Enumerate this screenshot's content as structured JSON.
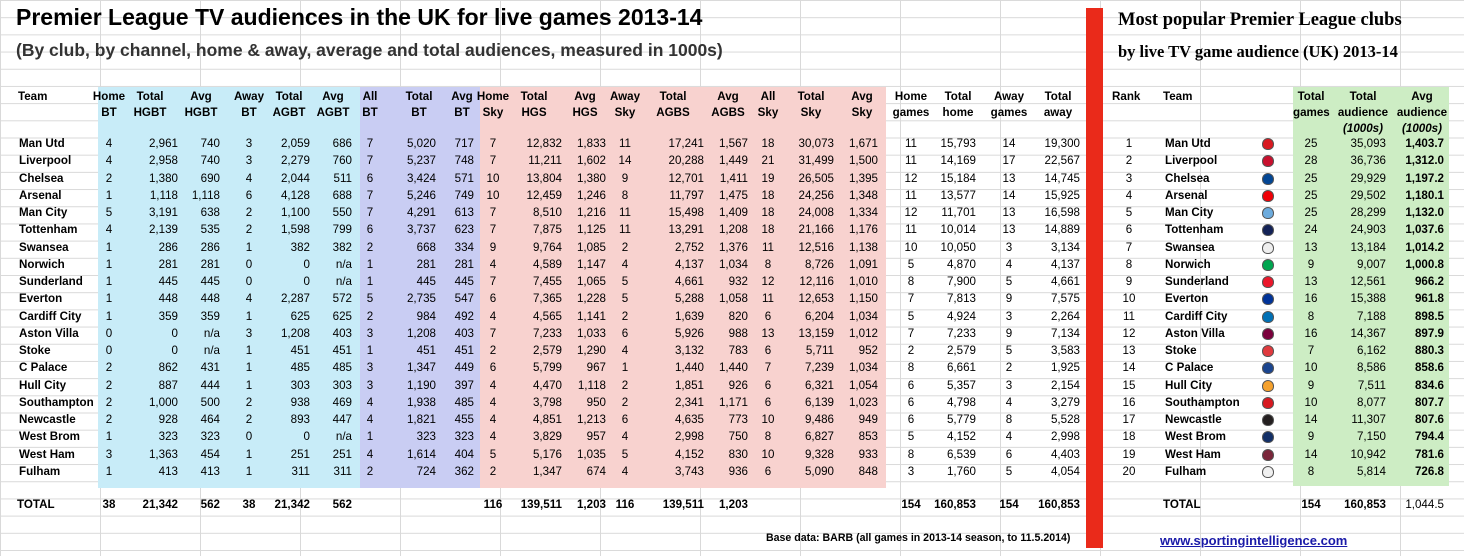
{
  "header": {
    "title": "Premier League TV audiences in the UK for live games 2013-14",
    "subtitle": "(By club, by channel, home & away, average and total audiences, measured in 1000s)"
  },
  "right_panel": {
    "title": "Most popular Premier League clubs",
    "subtitle": "by live TV game audience (UK) 2013-14"
  },
  "footer": {
    "base_data": "Base data: BARB (all games in 2013-14 season, to 11.5.2014)",
    "website": "www.sportingintelligence.com"
  },
  "chart_data": [
    {
      "type": "table",
      "columns": [
        {
          "key": "team",
          "header": [
            "Team"
          ]
        },
        {
          "key": "home_bt",
          "header": [
            "Home",
            "BT"
          ]
        },
        {
          "key": "total_hgbt",
          "header": [
            "Total",
            "HGBT"
          ]
        },
        {
          "key": "avg_hgbt",
          "header": [
            "Avg",
            "HGBT"
          ]
        },
        {
          "key": "away_bt",
          "header": [
            "Away",
            "BT"
          ]
        },
        {
          "key": "total_agbt",
          "header": [
            "Total",
            "AGBT"
          ]
        },
        {
          "key": "avg_agbt",
          "header": [
            "Avg",
            "AGBT"
          ]
        },
        {
          "key": "all_bt",
          "header": [
            "All",
            "BT"
          ]
        },
        {
          "key": "total_bt",
          "header": [
            "Total",
            "BT"
          ]
        },
        {
          "key": "avg_bt",
          "header": [
            "Avg",
            "BT"
          ]
        },
        {
          "key": "home_sky",
          "header": [
            "Home",
            "Sky"
          ]
        },
        {
          "key": "total_hgs",
          "header": [
            "Total",
            "HGS"
          ]
        },
        {
          "key": "avg_hgs",
          "header": [
            "Avg",
            "HGS"
          ]
        },
        {
          "key": "away_sky",
          "header": [
            "Away",
            "Sky"
          ]
        },
        {
          "key": "total_agbs",
          "header": [
            "Total",
            "AGBS"
          ]
        },
        {
          "key": "avg_agbs",
          "header": [
            "Avg",
            "AGBS"
          ]
        },
        {
          "key": "all_sky",
          "header": [
            "All",
            "Sky"
          ]
        },
        {
          "key": "total_sky",
          "header": [
            "Total",
            "Sky"
          ]
        },
        {
          "key": "avg_sky",
          "header": [
            "Avg",
            "Sky"
          ]
        },
        {
          "key": "home_games",
          "header": [
            "Home",
            "games"
          ]
        },
        {
          "key": "total_home",
          "header": [
            "Total",
            "home"
          ]
        },
        {
          "key": "away_games",
          "header": [
            "Away",
            "games"
          ]
        },
        {
          "key": "total_away",
          "header": [
            "Total",
            "away"
          ]
        }
      ],
      "rows": [
        [
          "Man Utd",
          "4",
          "2,961",
          "740",
          "3",
          "2,059",
          "686",
          "7",
          "5,020",
          "717",
          "7",
          "12,832",
          "1,833",
          "11",
          "17,241",
          "1,567",
          "18",
          "30,073",
          "1,671",
          "11",
          "15,793",
          "14",
          "19,300"
        ],
        [
          "Liverpool",
          "4",
          "2,958",
          "740",
          "3",
          "2,279",
          "760",
          "7",
          "5,237",
          "748",
          "7",
          "11,211",
          "1,602",
          "14",
          "20,288",
          "1,449",
          "21",
          "31,499",
          "1,500",
          "11",
          "14,169",
          "17",
          "22,567"
        ],
        [
          "Chelsea",
          "2",
          "1,380",
          "690",
          "4",
          "2,044",
          "511",
          "6",
          "3,424",
          "571",
          "10",
          "13,804",
          "1,380",
          "9",
          "12,701",
          "1,411",
          "19",
          "26,505",
          "1,395",
          "12",
          "15,184",
          "13",
          "14,745"
        ],
        [
          "Arsenal",
          "1",
          "1,118",
          "1,118",
          "6",
          "4,128",
          "688",
          "7",
          "5,246",
          "749",
          "10",
          "12,459",
          "1,246",
          "8",
          "11,797",
          "1,475",
          "18",
          "24,256",
          "1,348",
          "11",
          "13,577",
          "14",
          "15,925"
        ],
        [
          "Man City",
          "5",
          "3,191",
          "638",
          "2",
          "1,100",
          "550",
          "7",
          "4,291",
          "613",
          "7",
          "8,510",
          "1,216",
          "11",
          "15,498",
          "1,409",
          "18",
          "24,008",
          "1,334",
          "12",
          "11,701",
          "13",
          "16,598"
        ],
        [
          "Tottenham",
          "4",
          "2,139",
          "535",
          "2",
          "1,598",
          "799",
          "6",
          "3,737",
          "623",
          "7",
          "7,875",
          "1,125",
          "11",
          "13,291",
          "1,208",
          "18",
          "21,166",
          "1,176",
          "11",
          "10,014",
          "13",
          "14,889"
        ],
        [
          "Swansea",
          "1",
          "286",
          "286",
          "1",
          "382",
          "382",
          "2",
          "668",
          "334",
          "9",
          "9,764",
          "1,085",
          "2",
          "2,752",
          "1,376",
          "11",
          "12,516",
          "1,138",
          "10",
          "10,050",
          "3",
          "3,134"
        ],
        [
          "Norwich",
          "1",
          "281",
          "281",
          "0",
          "0",
          "n/a",
          "1",
          "281",
          "281",
          "4",
          "4,589",
          "1,147",
          "4",
          "4,137",
          "1,034",
          "8",
          "8,726",
          "1,091",
          "5",
          "4,870",
          "4",
          "4,137"
        ],
        [
          "Sunderland",
          "1",
          "445",
          "445",
          "0",
          "0",
          "n/a",
          "1",
          "445",
          "445",
          "7",
          "7,455",
          "1,065",
          "5",
          "4,661",
          "932",
          "12",
          "12,116",
          "1,010",
          "8",
          "7,900",
          "5",
          "4,661"
        ],
        [
          "Everton",
          "1",
          "448",
          "448",
          "4",
          "2,287",
          "572",
          "5",
          "2,735",
          "547",
          "6",
          "7,365",
          "1,228",
          "5",
          "5,288",
          "1,058",
          "11",
          "12,653",
          "1,150",
          "7",
          "7,813",
          "9",
          "7,575"
        ],
        [
          "Cardiff City",
          "1",
          "359",
          "359",
          "1",
          "625",
          "625",
          "2",
          "984",
          "492",
          "4",
          "4,565",
          "1,141",
          "2",
          "1,639",
          "820",
          "6",
          "6,204",
          "1,034",
          "5",
          "4,924",
          "3",
          "2,264"
        ],
        [
          "Aston Villa",
          "0",
          "0",
          "n/a",
          "3",
          "1,208",
          "403",
          "3",
          "1,208",
          "403",
          "7",
          "7,233",
          "1,033",
          "6",
          "5,926",
          "988",
          "13",
          "13,159",
          "1,012",
          "7",
          "7,233",
          "9",
          "7,134"
        ],
        [
          "Stoke",
          "0",
          "0",
          "n/a",
          "1",
          "451",
          "451",
          "1",
          "451",
          "451",
          "2",
          "2,579",
          "1,290",
          "4",
          "3,132",
          "783",
          "6",
          "5,711",
          "952",
          "2",
          "2,579",
          "5",
          "3,583"
        ],
        [
          "C Palace",
          "2",
          "862",
          "431",
          "1",
          "485",
          "485",
          "3",
          "1,347",
          "449",
          "6",
          "5,799",
          "967",
          "1",
          "1,440",
          "1,440",
          "7",
          "7,239",
          "1,034",
          "8",
          "6,661",
          "2",
          "1,925"
        ],
        [
          "Hull City",
          "2",
          "887",
          "444",
          "1",
          "303",
          "303",
          "3",
          "1,190",
          "397",
          "4",
          "4,470",
          "1,118",
          "2",
          "1,851",
          "926",
          "6",
          "6,321",
          "1,054",
          "6",
          "5,357",
          "3",
          "2,154"
        ],
        [
          "Southampton",
          "2",
          "1,000",
          "500",
          "2",
          "938",
          "469",
          "4",
          "1,938",
          "485",
          "4",
          "3,798",
          "950",
          "2",
          "2,341",
          "1,171",
          "6",
          "6,139",
          "1,023",
          "6",
          "4,798",
          "4",
          "3,279"
        ],
        [
          "Newcastle",
          "2",
          "928",
          "464",
          "2",
          "893",
          "447",
          "4",
          "1,821",
          "455",
          "4",
          "4,851",
          "1,213",
          "6",
          "4,635",
          "773",
          "10",
          "9,486",
          "949",
          "6",
          "5,779",
          "8",
          "5,528"
        ],
        [
          "West Brom",
          "1",
          "323",
          "323",
          "0",
          "0",
          "n/a",
          "1",
          "323",
          "323",
          "4",
          "3,829",
          "957",
          "4",
          "2,998",
          "750",
          "8",
          "6,827",
          "853",
          "5",
          "4,152",
          "4",
          "2,998"
        ],
        [
          "West Ham",
          "3",
          "1,363",
          "454",
          "1",
          "251",
          "251",
          "4",
          "1,614",
          "404",
          "5",
          "5,176",
          "1,035",
          "5",
          "4,152",
          "830",
          "10",
          "9,328",
          "933",
          "8",
          "6,539",
          "6",
          "4,403"
        ],
        [
          "Fulham",
          "1",
          "413",
          "413",
          "1",
          "311",
          "311",
          "2",
          "724",
          "362",
          "2",
          "1,347",
          "674",
          "4",
          "3,743",
          "936",
          "6",
          "5,090",
          "848",
          "3",
          "1,760",
          "5",
          "4,054"
        ]
      ],
      "total_row": [
        "TOTAL",
        "38",
        "21,342",
        "562",
        "38",
        "21,342",
        "562",
        "",
        "",
        "",
        "116",
        "139,511",
        "1,203",
        "116",
        "139,511",
        "1,203",
        "",
        "",
        "",
        "154",
        "160,853",
        "154",
        "160,853"
      ]
    },
    {
      "type": "table",
      "columns": [
        {
          "key": "rank",
          "header": [
            "Rank"
          ]
        },
        {
          "key": "team",
          "header": [
            "Team"
          ]
        },
        {
          "key": "total_games",
          "header": [
            "Total",
            "games"
          ]
        },
        {
          "key": "total_audience",
          "header": [
            "Total",
            "audience",
            "(1000s)"
          ]
        },
        {
          "key": "avg_audience",
          "header": [
            "Avg",
            "audience",
            "(1000s)"
          ]
        }
      ],
      "rows": [
        [
          "1",
          "Man Utd",
          "25",
          "35,093",
          "1,403.7"
        ],
        [
          "2",
          "Liverpool",
          "28",
          "36,736",
          "1,312.0"
        ],
        [
          "3",
          "Chelsea",
          "25",
          "29,929",
          "1,197.2"
        ],
        [
          "4",
          "Arsenal",
          "25",
          "29,502",
          "1,180.1"
        ],
        [
          "5",
          "Man City",
          "25",
          "28,299",
          "1,132.0"
        ],
        [
          "6",
          "Tottenham",
          "24",
          "24,903",
          "1,037.6"
        ],
        [
          "7",
          "Swansea",
          "13",
          "13,184",
          "1,014.2"
        ],
        [
          "8",
          "Norwich",
          "9",
          "9,007",
          "1,000.8"
        ],
        [
          "9",
          "Sunderland",
          "13",
          "12,561",
          "966.2"
        ],
        [
          "10",
          "Everton",
          "16",
          "15,388",
          "961.8"
        ],
        [
          "11",
          "Cardiff City",
          "8",
          "7,188",
          "898.5"
        ],
        [
          "12",
          "Aston Villa",
          "16",
          "14,367",
          "897.9"
        ],
        [
          "13",
          "Stoke",
          "7",
          "6,162",
          "880.3"
        ],
        [
          "14",
          "C Palace",
          "10",
          "8,586",
          "858.6"
        ],
        [
          "15",
          "Hull City",
          "9",
          "7,511",
          "834.6"
        ],
        [
          "16",
          "Southampton",
          "10",
          "8,077",
          "807.7"
        ],
        [
          "17",
          "Newcastle",
          "14",
          "11,307",
          "807.6"
        ],
        [
          "18",
          "West Brom",
          "9",
          "7,150",
          "794.4"
        ],
        [
          "19",
          "West Ham",
          "14",
          "10,942",
          "781.6"
        ],
        [
          "20",
          "Fulham",
          "8",
          "5,814",
          "726.8"
        ]
      ],
      "total_row": [
        "",
        "TOTAL",
        "154",
        "160,853",
        "1,044.5"
      ],
      "crest_colors": [
        "#d81920",
        "#c8102e",
        "#034694",
        "#ef0107",
        "#6cabdd",
        "#132257",
        "#eeeeee",
        "#00a650",
        "#eb172b",
        "#003399",
        "#0070b5",
        "#7a003c",
        "#e03a3e",
        "#1b458f",
        "#f5a12d",
        "#d71920",
        "#241f20",
        "#122f67",
        "#7a263a",
        "#f0f0f0"
      ]
    }
  ]
}
